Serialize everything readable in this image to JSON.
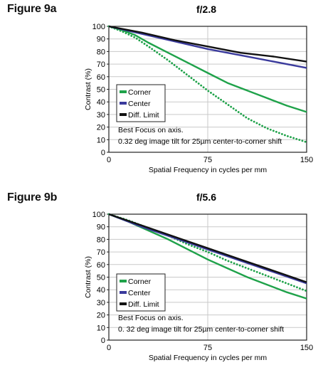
{
  "figures": [
    {
      "label": "Figure 9a"
    },
    {
      "label": "Figure 9b"
    }
  ],
  "chart_data": [
    {
      "type": "line",
      "title": "f/2.8",
      "xlabel": "Spatial Frequency in cycles per mm",
      "ylabel": "Contrast (%)",
      "xlim": [
        0,
        150
      ],
      "ylim": [
        0,
        100
      ],
      "xticks": [
        0,
        75,
        150
      ],
      "yticks": [
        0,
        10,
        20,
        30,
        40,
        50,
        60,
        70,
        80,
        90,
        100
      ],
      "grid": true,
      "legend_position": "lower-left",
      "notes": [
        "Best Focus on axis.",
        "0.32 deg image tilt for 25µm center-to-corner shift"
      ],
      "series": [
        {
          "name": "Corner",
          "style": "solid",
          "color": "#1fa24a",
          "x": [
            0,
            10,
            20,
            30,
            45,
            60,
            75,
            90,
            105,
            120,
            135,
            150
          ],
          "y": [
            100,
            97,
            93,
            87,
            79,
            71,
            63,
            55,
            49,
            43,
            37,
            32
          ]
        },
        {
          "name": "Corner",
          "style": "dotted",
          "color": "#1fa24a",
          "x": [
            0,
            10,
            20,
            30,
            45,
            60,
            75,
            90,
            105,
            120,
            135,
            150
          ],
          "y": [
            100,
            96,
            91,
            84,
            73,
            61,
            49,
            38,
            27,
            19,
            13,
            8
          ]
        },
        {
          "name": "Center",
          "style": "solid",
          "color": "#3a3a9c",
          "x": [
            0,
            25,
            50,
            75,
            100,
            125,
            150
          ],
          "y": [
            100,
            94,
            88,
            82,
            77,
            72,
            67
          ]
        },
        {
          "name": "Diff. Limit",
          "style": "solid",
          "color": "#111111",
          "x": [
            0,
            25,
            50,
            75,
            100,
            125,
            150
          ],
          "y": [
            100,
            95,
            89,
            84,
            79,
            76,
            72
          ]
        }
      ],
      "legend": [
        {
          "label": "Corner",
          "color": "#1fa24a"
        },
        {
          "label": "Center",
          "color": "#3a3a9c"
        },
        {
          "label": "Diff. Limit",
          "color": "#111111"
        }
      ]
    },
    {
      "type": "line",
      "title": "f/5.6",
      "xlabel": "Spatial Frequency in cycles per mm",
      "ylabel": "Contrast (%)",
      "xlim": [
        0,
        150
      ],
      "ylim": [
        0,
        100
      ],
      "xticks": [
        0,
        75,
        150
      ],
      "yticks": [
        0,
        10,
        20,
        30,
        40,
        50,
        60,
        70,
        80,
        90,
        100
      ],
      "grid": true,
      "legend_position": "lower-left",
      "notes": [
        "Best Focus on axis.",
        "0. 32 deg image tilt for 25µm center-to-corner shift"
      ],
      "series": [
        {
          "name": "Corner",
          "style": "solid",
          "color": "#1fa24a",
          "x": [
            0,
            15,
            30,
            45,
            60,
            75,
            90,
            105,
            120,
            135,
            150
          ],
          "y": [
            100,
            94,
            87,
            80,
            72,
            64,
            57,
            50,
            44,
            38,
            33
          ]
        },
        {
          "name": "Corner",
          "style": "dotted",
          "color": "#1fa24a",
          "x": [
            0,
            15,
            30,
            45,
            60,
            75,
            90,
            105,
            120,
            135,
            150
          ],
          "y": [
            100,
            95,
            89,
            83,
            76,
            70,
            63,
            57,
            51,
            45,
            39
          ]
        },
        {
          "name": "Center",
          "style": "solid",
          "color": "#3a3a9c",
          "x": [
            0,
            25,
            50,
            75,
            100,
            125,
            150
          ],
          "y": [
            100,
            90,
            81,
            72,
            63,
            54,
            45
          ]
        },
        {
          "name": "Diff. Limit",
          "style": "solid",
          "color": "#111111",
          "x": [
            0,
            25,
            50,
            75,
            100,
            125,
            150
          ],
          "y": [
            100,
            91,
            82,
            73,
            64,
            55,
            46
          ]
        }
      ],
      "legend": [
        {
          "label": "Corner",
          "color": "#1fa24a"
        },
        {
          "label": "Center",
          "color": "#3a3a9c"
        },
        {
          "label": "Diff. Limit",
          "color": "#111111"
        }
      ]
    }
  ]
}
